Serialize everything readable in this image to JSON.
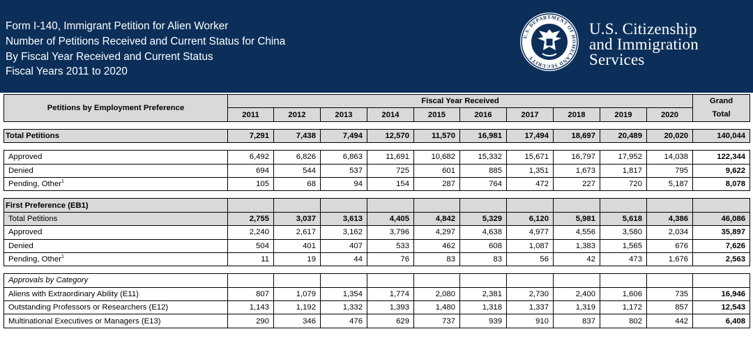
{
  "header": {
    "lines": [
      "Form I-140, Immigrant Petition for Alien Worker",
      "Number of Petitions Received and Current Status for China",
      "By Fiscal Year Received and Current Status",
      "Fiscal Years 2011 to 2020"
    ],
    "agency_lines": [
      "U.S. Citizenship",
      "and Immigration",
      "Services"
    ],
    "seal_text": "U.S. DEPARTMENT OF HOMELAND SECURITY"
  },
  "table": {
    "row_header": "Petitions by Employment Preference",
    "group_header": "Fiscal Year Received",
    "grand_total_header": [
      "Grand",
      "Total"
    ],
    "years": [
      "2011",
      "2012",
      "2013",
      "2014",
      "2015",
      "2016",
      "2017",
      "2018",
      "2019",
      "2020"
    ],
    "rows": [
      {
        "label": "Total Petitions",
        "values": [
          "7,291",
          "7,438",
          "7,494",
          "12,570",
          "11,570",
          "16,981",
          "17,494",
          "18,697",
          "20,489",
          "20,020"
        ],
        "total": "140,044"
      },
      {
        "label": "Approved",
        "values": [
          "6,492",
          "6,826",
          "6,863",
          "11,691",
          "10,682",
          "15,332",
          "15,671",
          "16,797",
          "17,952",
          "14,038"
        ],
        "total": "122,344"
      },
      {
        "label": "Denied",
        "values": [
          "694",
          "544",
          "537",
          "725",
          "601",
          "885",
          "1,351",
          "1,673",
          "1,817",
          "795"
        ],
        "total": "9,622"
      },
      {
        "label": "Pending, Other",
        "sup": "1",
        "values": [
          "105",
          "68",
          "94",
          "154",
          "287",
          "764",
          "472",
          "227",
          "720",
          "5,187"
        ],
        "total": "8,078"
      },
      {
        "label": "First Preference (EB1)"
      },
      {
        "label": "Total Petitions",
        "values": [
          "2,755",
          "3,037",
          "3,613",
          "4,405",
          "4,842",
          "5,329",
          "6,120",
          "5,981",
          "5,618",
          "4,386"
        ],
        "total": "46,086"
      },
      {
        "label": "Approved",
        "values": [
          "2,240",
          "2,617",
          "3,162",
          "3,796",
          "4,297",
          "4,638",
          "4,977",
          "4,556",
          "3,580",
          "2,034"
        ],
        "total": "35,897"
      },
      {
        "label": "Denied",
        "values": [
          "504",
          "401",
          "407",
          "533",
          "462",
          "608",
          "1,087",
          "1,383",
          "1,565",
          "676"
        ],
        "total": "7,626"
      },
      {
        "label": "Pending, Other",
        "sup": "1",
        "values": [
          "11",
          "19",
          "44",
          "76",
          "83",
          "83",
          "56",
          "42",
          "473",
          "1,676"
        ],
        "total": "2,563"
      },
      {
        "label": "Approvals by Category"
      },
      {
        "label": "Aliens with Extraordinary Ability (E11)",
        "values": [
          "807",
          "1,079",
          "1,354",
          "1,774",
          "2,080",
          "2,381",
          "2,730",
          "2,400",
          "1,606",
          "735"
        ],
        "total": "16,946"
      },
      {
        "label": "Outstanding Professors or Researchers (E12)",
        "values": [
          "1,143",
          "1,192",
          "1,332",
          "1,393",
          "1,480",
          "1,318",
          "1,337",
          "1,319",
          "1,172",
          "857"
        ],
        "total": "12,543"
      },
      {
        "label": "Multinational Executives or Managers (E13)",
        "values": [
          "290",
          "346",
          "476",
          "629",
          "737",
          "939",
          "910",
          "837",
          "802",
          "442"
        ],
        "total": "6,408"
      }
    ]
  },
  "colors": {
    "banner": "#0b2f59",
    "header_fill": "#d9d9d9",
    "text": "#000000"
  }
}
